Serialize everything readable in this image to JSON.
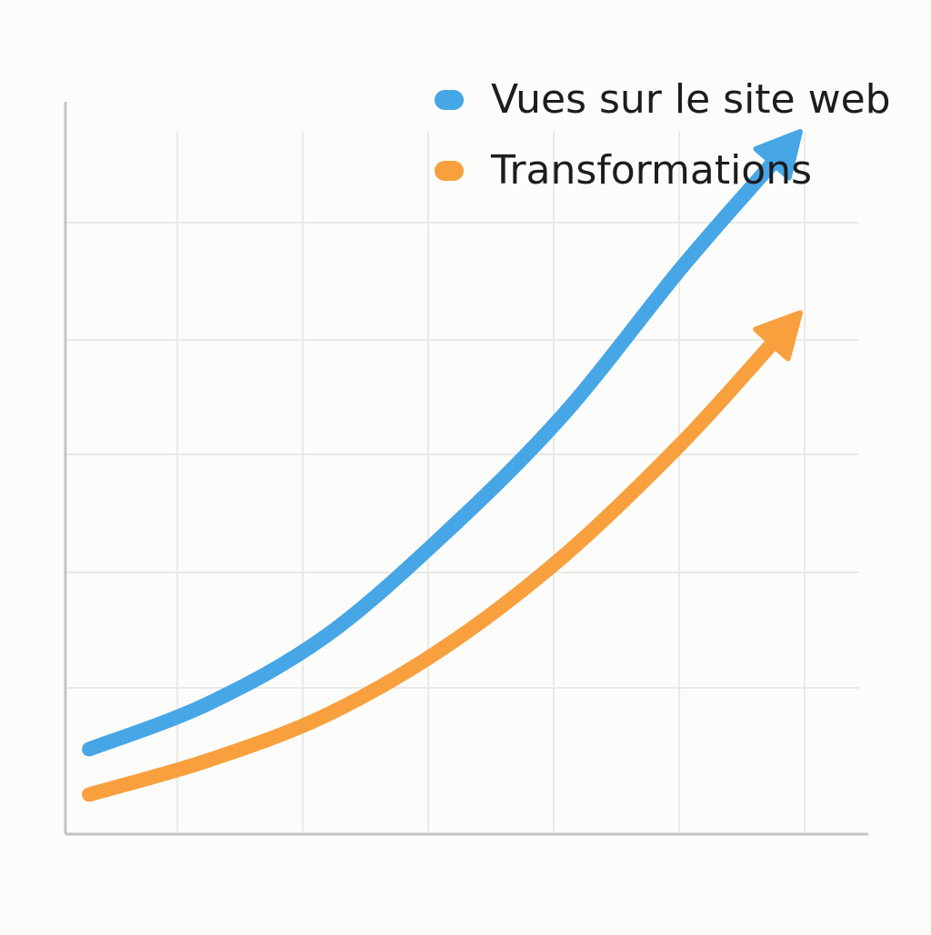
{
  "chart_data": {
    "type": "line",
    "title": "",
    "xlabel": "",
    "ylabel": "",
    "grid": true,
    "legend_placement": "top-right",
    "x": [
      0,
      1,
      2,
      3,
      4,
      5,
      6
    ],
    "xlim": [
      -0.2,
      6.5
    ],
    "ylim": [
      0,
      6.2
    ],
    "series": [
      {
        "name": "Vues sur le site web",
        "color": "#47a6e6",
        "arrow_end": true,
        "values": [
          0.75,
          1.15,
          1.75,
          2.65,
          3.7,
          5.0,
          6.2
        ]
      },
      {
        "name": "Transformations",
        "color": "#f8a03e",
        "arrow_end": true,
        "values": [
          0.35,
          0.65,
          1.05,
          1.65,
          2.45,
          3.45,
          4.6
        ]
      }
    ]
  }
}
